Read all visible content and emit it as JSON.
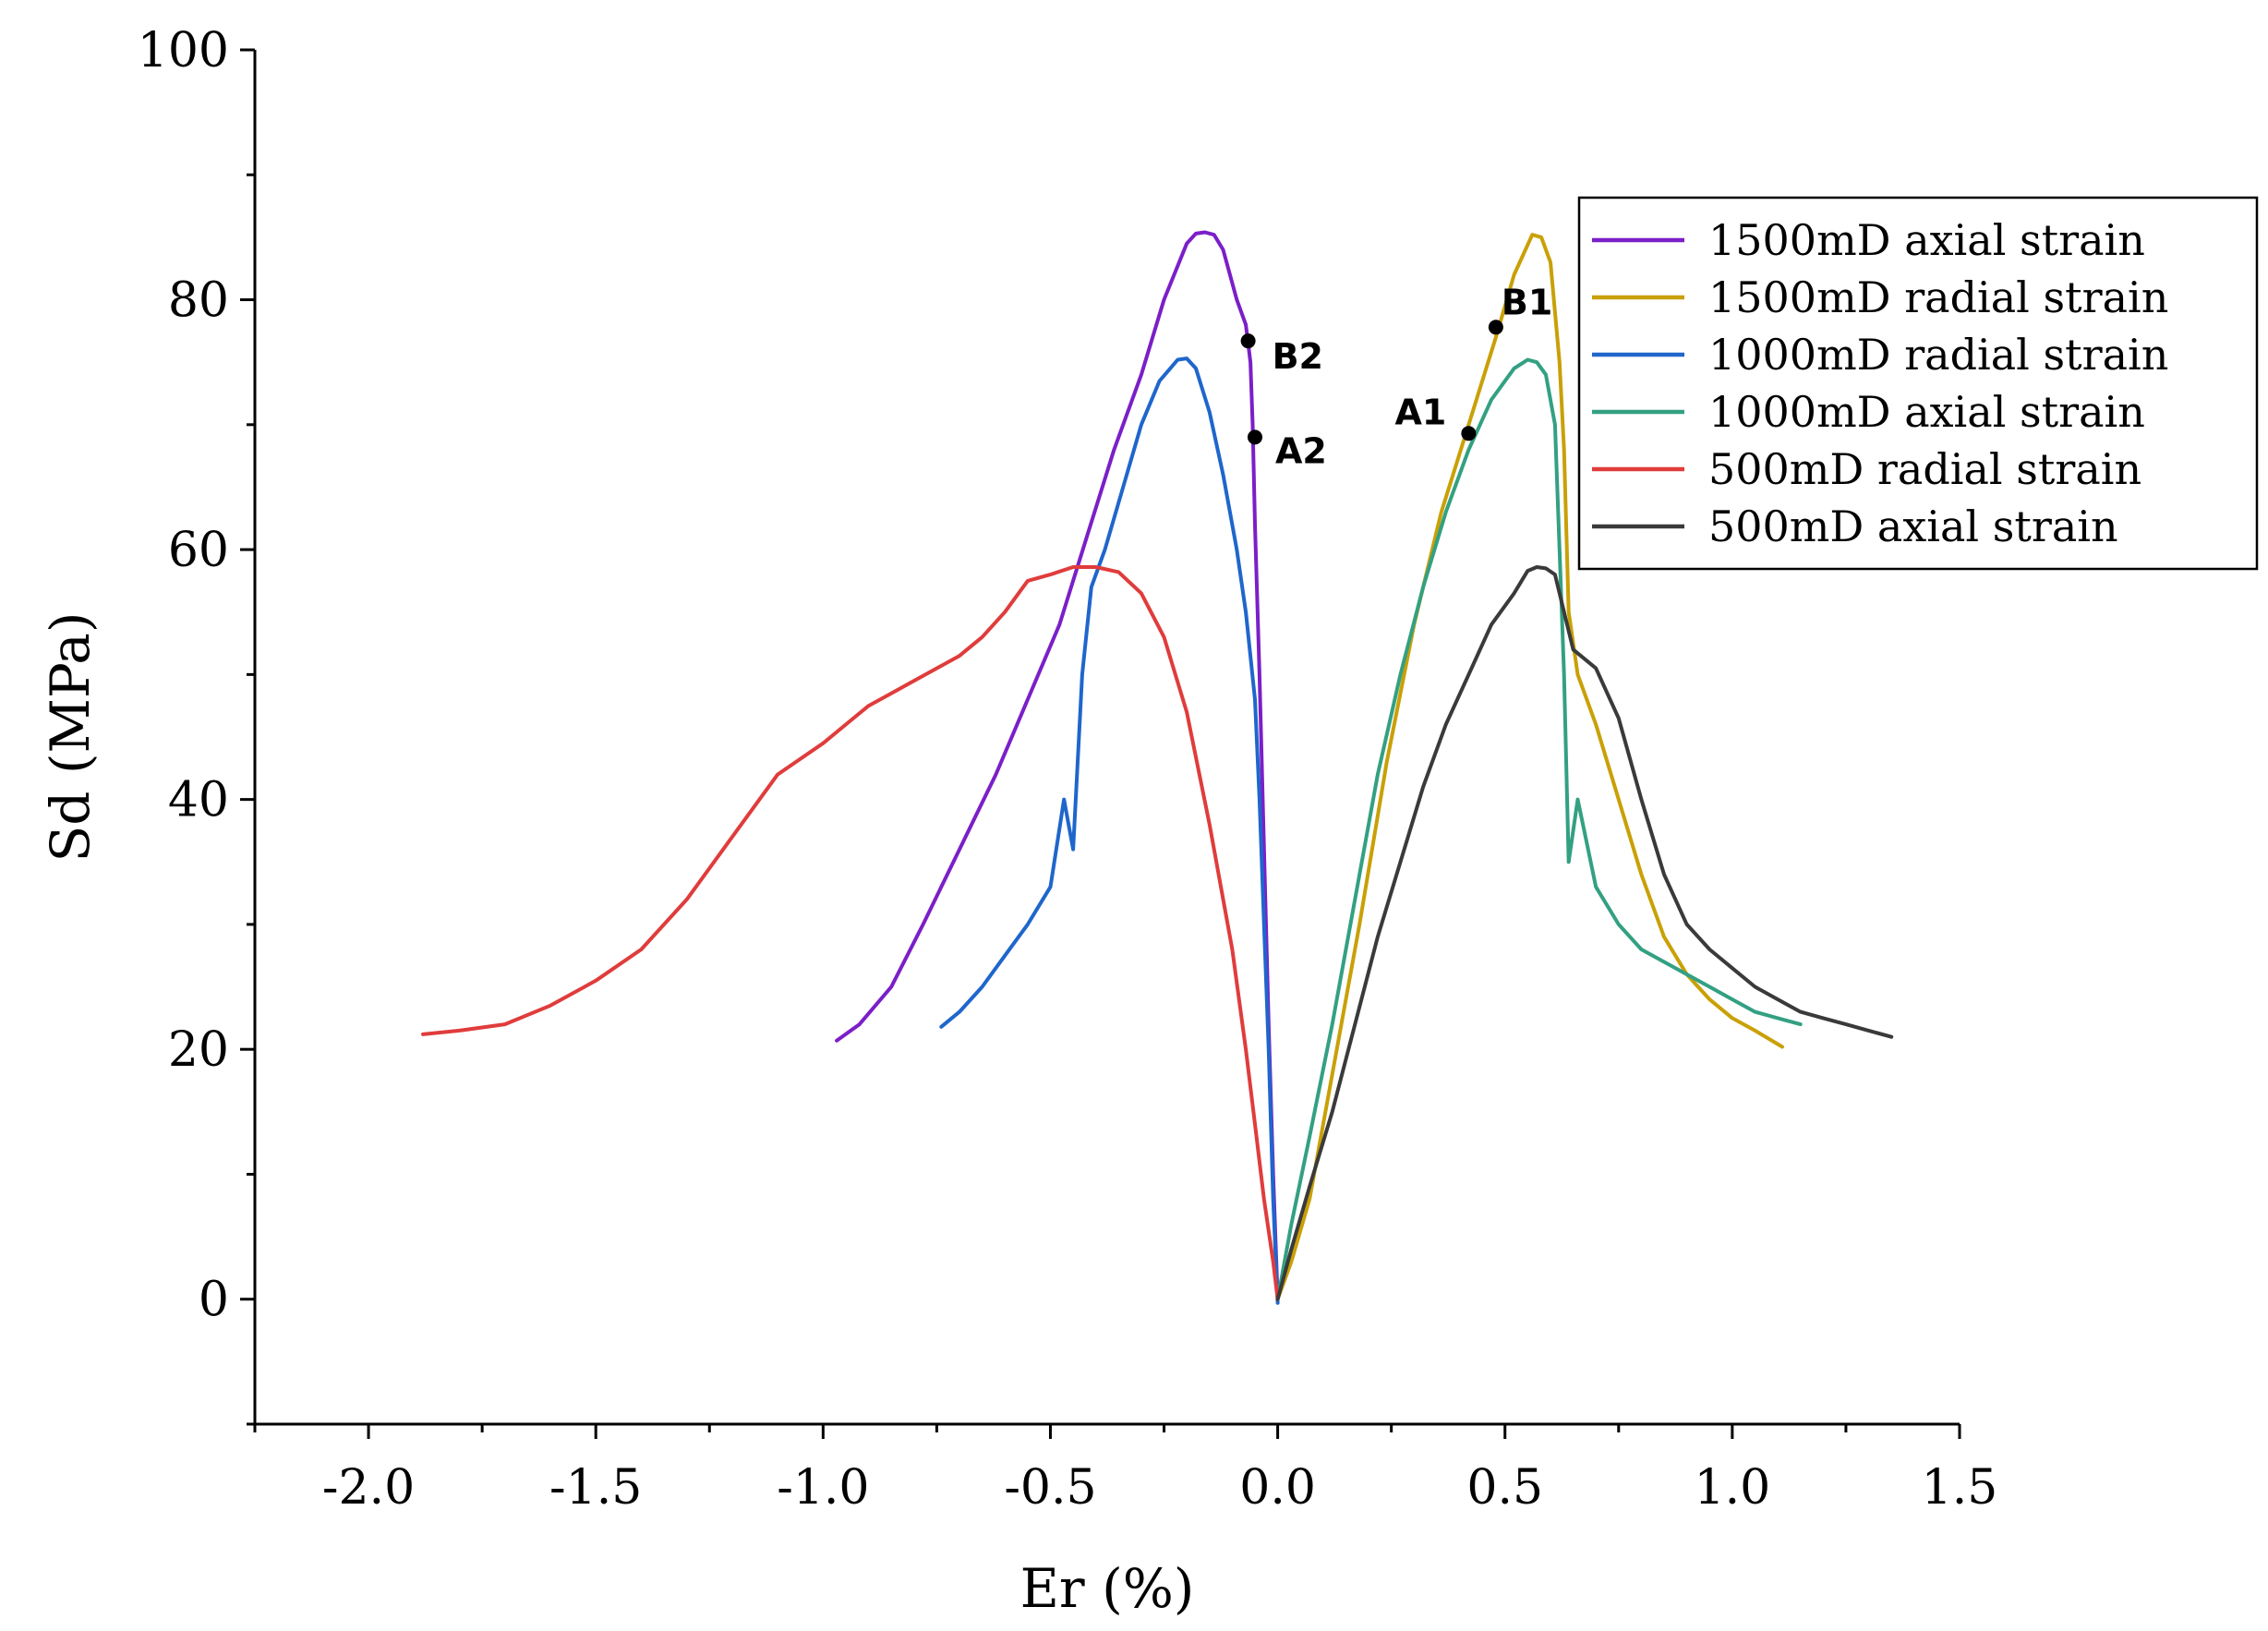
{
  "chart_data": {
    "type": "line",
    "title": "",
    "xlabel": "Er (%)",
    "ylabel": "Sd (MPa)",
    "xlim": [
      -2.25,
      1.5
    ],
    "ylim": [
      -10,
      100
    ],
    "xticks": [
      -2.0,
      -1.5,
      -1.0,
      -0.5,
      0.0,
      0.5,
      1.0,
      1.5
    ],
    "xtick_labels": [
      "-2.0",
      "-1.5",
      "-1.0",
      "-0.5",
      "0.0",
      "0.5",
      "1.0",
      "1.5"
    ],
    "yticks": [
      0,
      20,
      40,
      60,
      80,
      100
    ],
    "ytick_labels": [
      "0",
      "20",
      "40",
      "60",
      "80",
      "100"
    ],
    "grid": false,
    "legend_position": "top-right",
    "series": [
      {
        "name": "1500mD axial strain",
        "color": "#7B1FC8",
        "x": [
          -0.97,
          -0.92,
          -0.85,
          -0.78,
          -0.7,
          -0.62,
          -0.55,
          -0.48,
          -0.42,
          -0.36,
          -0.3,
          -0.25,
          -0.2,
          -0.18,
          -0.16,
          -0.14,
          -0.12,
          -0.09,
          -0.07,
          -0.06,
          -0.055,
          -0.05,
          -0.04,
          -0.03,
          -0.02,
          -0.01,
          0.0
        ],
        "y": [
          20.7,
          22,
          25,
          30,
          36,
          42,
          48,
          54,
          61,
          68,
          74,
          80,
          84.5,
          85.3,
          85.4,
          85.2,
          84,
          80,
          78,
          75,
          70,
          62,
          50,
          36,
          22,
          10,
          0
        ]
      },
      {
        "name": "1500mD radial strain",
        "color": "#C9A006",
        "x": [
          0.0,
          0.03,
          0.07,
          0.12,
          0.18,
          0.24,
          0.3,
          0.36,
          0.42,
          0.48,
          0.52,
          0.56,
          0.58,
          0.6,
          0.62,
          0.63,
          0.64,
          0.66,
          0.7,
          0.75,
          0.8,
          0.85,
          0.9,
          0.95,
          1.0,
          1.05,
          1.11
        ],
        "y": [
          0,
          3,
          8,
          18,
          30,
          43,
          54,
          63,
          70,
          77,
          82,
          85.2,
          85,
          83,
          75,
          68,
          55,
          50,
          46,
          40,
          34,
          29,
          26,
          24,
          22.5,
          21.5,
          20.2
        ]
      },
      {
        "name": "1000mD radial strain",
        "color": "#1F66CC",
        "x": [
          -0.74,
          -0.7,
          -0.65,
          -0.6,
          -0.55,
          -0.5,
          -0.47,
          -0.45,
          -0.43,
          -0.41,
          -0.38,
          -0.34,
          -0.3,
          -0.26,
          -0.22,
          -0.2,
          -0.18,
          -0.15,
          -0.12,
          -0.09,
          -0.07,
          -0.05,
          -0.04,
          -0.03,
          -0.02,
          -0.01,
          0.0
        ],
        "y": [
          21.8,
          23,
          25,
          27.5,
          30,
          33,
          40,
          36,
          50,
          57,
          60,
          65,
          70,
          73.5,
          75.2,
          75.3,
          74.5,
          71,
          66,
          60,
          55,
          48,
          40,
          30,
          20,
          8,
          -0.3
        ]
      },
      {
        "name": "1000mD axial strain",
        "color": "#33A082",
        "x": [
          0.0,
          0.03,
          0.07,
          0.12,
          0.17,
          0.22,
          0.27,
          0.32,
          0.37,
          0.42,
          0.47,
          0.52,
          0.55,
          0.57,
          0.59,
          0.61,
          0.62,
          0.63,
          0.64,
          0.66,
          0.7,
          0.75,
          0.8,
          0.85,
          0.9,
          0.95,
          1.0,
          1.05,
          1.1,
          1.15
        ],
        "y": [
          0,
          6,
          13,
          22,
          32,
          42,
          50,
          57,
          63,
          68,
          72,
          74.5,
          75.2,
          75,
          74,
          70,
          60,
          50,
          35,
          40,
          33,
          30,
          28,
          27,
          26,
          25,
          24,
          23,
          22.5,
          22
        ]
      },
      {
        "name": "500mD radial strain",
        "color": "#E03C3C",
        "x": [
          -1.88,
          -1.8,
          -1.7,
          -1.6,
          -1.5,
          -1.4,
          -1.3,
          -1.2,
          -1.1,
          -1.0,
          -0.95,
          -0.9,
          -0.85,
          -0.8,
          -0.75,
          -0.7,
          -0.65,
          -0.6,
          -0.55,
          -0.5,
          -0.45,
          -0.4,
          -0.35,
          -0.3,
          -0.25,
          -0.2,
          -0.15,
          -0.1,
          -0.07,
          -0.05,
          -0.03,
          -0.01,
          0.0
        ],
        "y": [
          21.2,
          21.5,
          22,
          23.5,
          25.5,
          28,
          32,
          37,
          42,
          44.5,
          46,
          47.5,
          48.5,
          49.5,
          50.5,
          51.5,
          53,
          55,
          57.5,
          58,
          58.6,
          58.6,
          58.2,
          56.5,
          53,
          47,
          38,
          28,
          20,
          14,
          8,
          3,
          0
        ]
      },
      {
        "name": "500mD axial strain",
        "color": "#3A3A3A",
        "x": [
          0.0,
          0.03,
          0.07,
          0.12,
          0.17,
          0.22,
          0.27,
          0.32,
          0.37,
          0.42,
          0.47,
          0.52,
          0.55,
          0.57,
          0.59,
          0.61,
          0.63,
          0.65,
          0.7,
          0.75,
          0.8,
          0.85,
          0.9,
          0.95,
          1.0,
          1.05,
          1.1,
          1.15,
          1.2,
          1.25,
          1.3,
          1.35
        ],
        "y": [
          0,
          4,
          9,
          15,
          22,
          29,
          35,
          41,
          46,
          50,
          54,
          56.5,
          58.3,
          58.6,
          58.5,
          58,
          55,
          52,
          50.5,
          46.5,
          40,
          34,
          30,
          28,
          26.5,
          25,
          24,
          23,
          22.5,
          22,
          21.5,
          21
        ]
      }
    ],
    "annotations": [
      {
        "label": "A1",
        "x": 0.42,
        "y": 69.3
      },
      {
        "label": "B1",
        "x": 0.48,
        "y": 77.8
      },
      {
        "label": "A2",
        "x": -0.05,
        "y": 69.0
      },
      {
        "label": "B2",
        "x": -0.065,
        "y": 76.7
      }
    ]
  }
}
